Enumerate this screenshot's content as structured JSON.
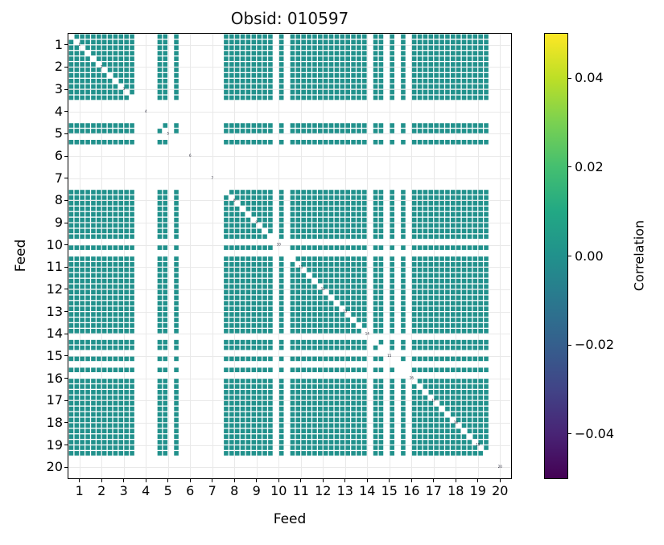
{
  "figure": {
    "title": "Obsid: 010597",
    "background": "#ffffff"
  },
  "axes": {
    "xlabel": "Feed",
    "ylabel": "Feed",
    "tick_labels": [
      "1",
      "2",
      "3",
      "4",
      "5",
      "6",
      "7",
      "8",
      "9",
      "10",
      "11",
      "12",
      "13",
      "14",
      "15",
      "16",
      "17",
      "18",
      "19",
      "20"
    ]
  },
  "colorbar": {
    "label": "Correlation",
    "tick_labels": [
      "0.04",
      "0.02",
      "0.00",
      "−0.02",
      "−0.04"
    ],
    "tick_fractions_from_top": [
      0.1,
      0.3,
      0.5,
      0.7,
      0.9
    ],
    "vmin": -0.05,
    "vmax": 0.05,
    "colormap": "viridis",
    "gradient_stops_bottom_to_top": [
      "#440154",
      "#482475",
      "#414487",
      "#355f8d",
      "#2a788e",
      "#21918c",
      "#22a884",
      "#44bf70",
      "#7ad151",
      "#bddf26",
      "#fde725"
    ]
  },
  "chart_data": {
    "type": "heatmap",
    "title": "Obsid: 010597",
    "xlabel": "Feed",
    "ylabel": "Feed",
    "feeds": [
      1,
      2,
      3,
      4,
      5,
      6,
      7,
      8,
      9,
      10,
      11,
      12,
      13,
      14,
      15,
      16,
      17,
      18,
      19,
      20
    ],
    "n_feeds": 20,
    "bands_per_feed": 4,
    "correlation_fill_value": 0.0,
    "cell_color": "#21918c",
    "grid_color": "#e9e9e9",
    "vmin": -0.05,
    "vmax": 0.05,
    "missing_feeds": [
      4,
      6,
      7,
      20
    ],
    "band_mask": [
      [
        1,
        1,
        1,
        1
      ],
      [
        1,
        1,
        1,
        1
      ],
      [
        1,
        1,
        1,
        1
      ],
      [
        0,
        0,
        0,
        0
      ],
      [
        1,
        1,
        0,
        1
      ],
      [
        0,
        0,
        0,
        0
      ],
      [
        0,
        0,
        0,
        0
      ],
      [
        1,
        1,
        1,
        1
      ],
      [
        1,
        1,
        1,
        1
      ],
      [
        1,
        0,
        1,
        0
      ],
      [
        1,
        1,
        1,
        1
      ],
      [
        1,
        1,
        1,
        1
      ],
      [
        1,
        1,
        1,
        1
      ],
      [
        1,
        1,
        0,
        1
      ],
      [
        1,
        0,
        1,
        0
      ],
      [
        1,
        0,
        1,
        1
      ],
      [
        1,
        1,
        1,
        1
      ],
      [
        1,
        1,
        1,
        1
      ],
      [
        1,
        1,
        1,
        1
      ],
      [
        0,
        0,
        0,
        0
      ]
    ],
    "diagonal": "masked",
    "diagonal_feed_labels": true,
    "diagonal_label_color": "#1c1c2e"
  }
}
